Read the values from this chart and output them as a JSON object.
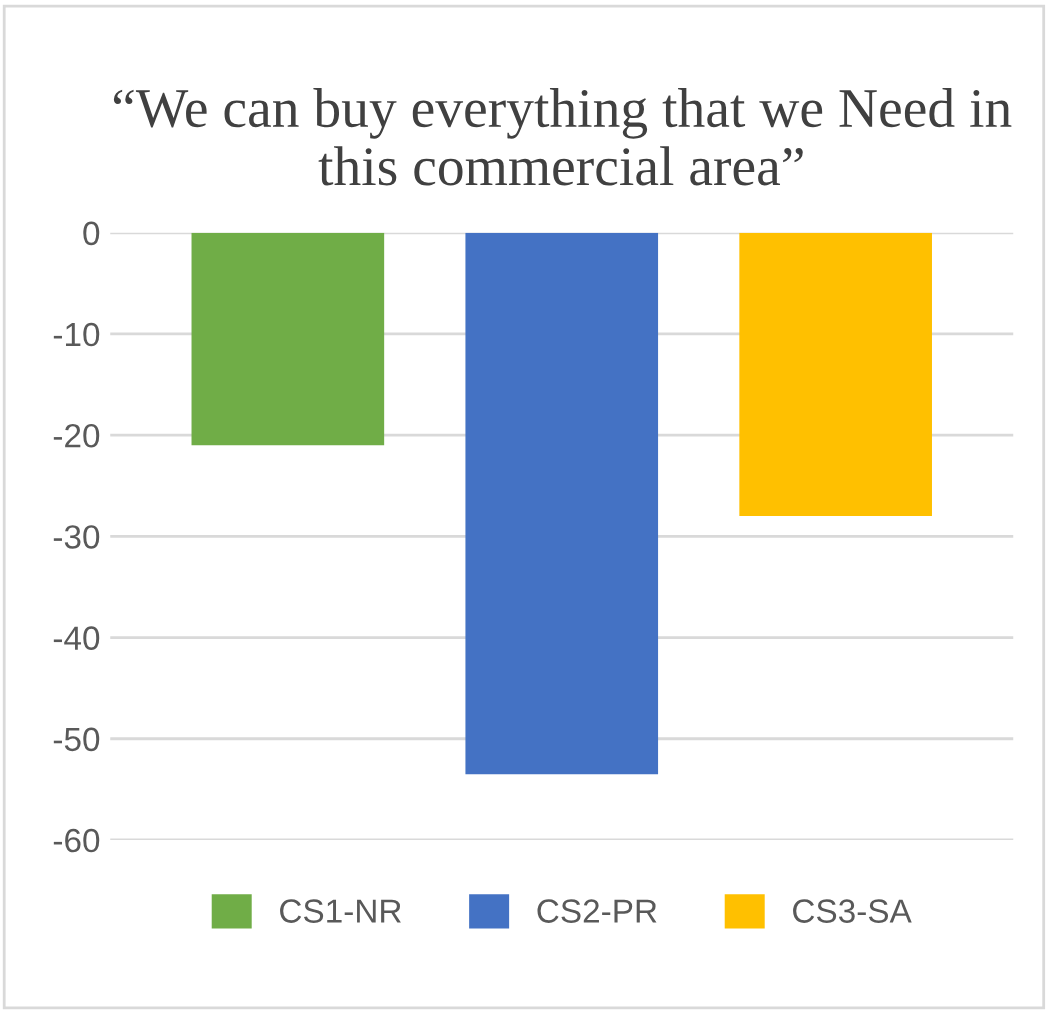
{
  "chart_data": {
    "type": "bar",
    "title": "“We can buy everything that we Need in this commercial area”",
    "categories": [
      null
    ],
    "series": [
      {
        "name": "CS1-NR",
        "color": "#70ad47",
        "values": [
          -21
        ]
      },
      {
        "name": "CS2-PR",
        "color": "#4472c4",
        "values": [
          -53.5
        ]
      },
      {
        "name": "CS3-SA",
        "color": "#ffc000",
        "values": [
          -28
        ]
      }
    ],
    "ylim": [
      -60,
      0
    ],
    "yticks": [
      0,
      -10,
      -20,
      -30,
      -40,
      -50,
      -60
    ],
    "grid": "y",
    "legend": "bottom"
  }
}
